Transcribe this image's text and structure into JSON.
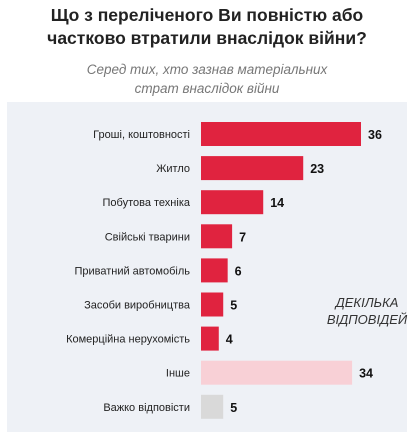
{
  "title_line1": "Що з переліченого Ви повністю або",
  "title_line2": "частково втратили внаслідок війни?",
  "subtitle_line1": "Серед тих, хто зазнав матеріальних",
  "subtitle_line2": "страт внаслідок війни",
  "note_line1": "ДЕКІЛЬКА",
  "note_line2": "ВІДПОВІДЕЙ",
  "chart_data": {
    "type": "bar",
    "orientation": "horizontal",
    "categories": [
      "Гроші, коштовності",
      "Житло",
      "Побутова техніка",
      "Свійські тварини",
      "Приватний автомобіль",
      "Засоби виробництва",
      "Комерційна нерухомість",
      "Інше",
      "Важко відповісти"
    ],
    "values": [
      36,
      23,
      14,
      7,
      6,
      5,
      4,
      34,
      5
    ],
    "colors": [
      "#e0233f",
      "#e0233f",
      "#e0233f",
      "#e0233f",
      "#e0233f",
      "#e0233f",
      "#e0233f",
      "#f8d0d6",
      "#d9d9d9"
    ],
    "xlim": [
      0,
      36
    ],
    "grid": false,
    "legend": "none"
  }
}
